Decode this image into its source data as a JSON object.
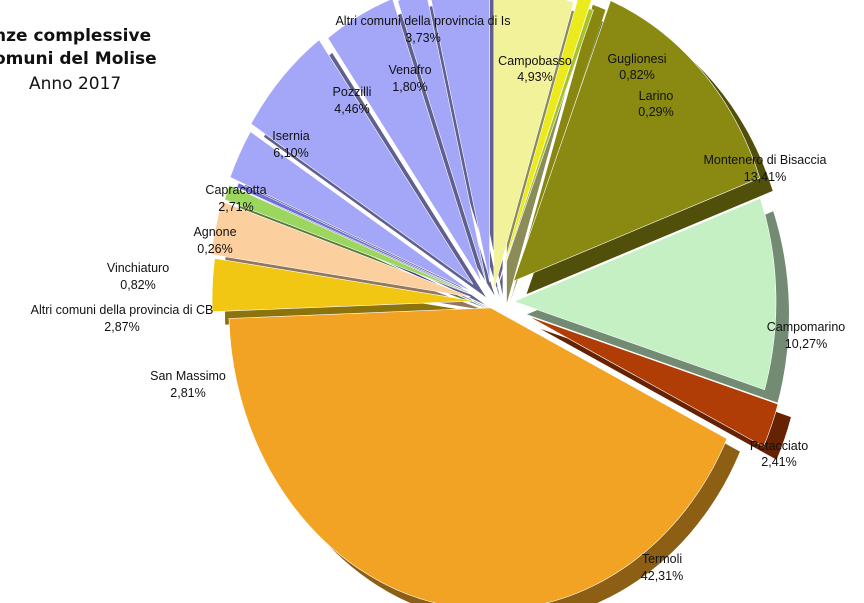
{
  "chart_data": {
    "type": "pie",
    "title_lines": [
      "nze complessive",
      "omuni del Molise",
      "Anno 2017"
    ],
    "slices": [
      {
        "name": "Campobasso",
        "value": 4.93,
        "label": "4,93%",
        "color": "#f2f29a"
      },
      {
        "name": "Guglionesi",
        "value": 0.82,
        "label": "0,82%",
        "color": "#eaea1c"
      },
      {
        "name": "Larino",
        "value": 0.29,
        "label": "0,29%",
        "color": "#a9c22a"
      },
      {
        "name": "Montenero di Bisaccia",
        "value": 13.41,
        "label": "13,41%",
        "color": "#8a8a12"
      },
      {
        "name": "Campomarino",
        "value": 10.27,
        "label": "10,27%",
        "color": "#c4f0c4"
      },
      {
        "name": "Petacciato",
        "value": 2.41,
        "label": "2,41%",
        "color": "#b03c06"
      },
      {
        "name": "Termoli",
        "value": 42.31,
        "label": "42,31%",
        "color": "#f2a323"
      },
      {
        "name": "San Massimo",
        "value": 2.81,
        "label": "2,81%",
        "color": "#f2c713"
      },
      {
        "name": "Altri comuni della provincia di CB",
        "value": 2.87,
        "label": "2,87%",
        "color": "#fbcf9e"
      },
      {
        "name": "Vinchiaturo",
        "value": 0.82,
        "label": "0,82%",
        "color": "#9bd65e"
      },
      {
        "name": "Agnone",
        "value": 0.26,
        "label": "0,26%",
        "color": "#6f70d8"
      },
      {
        "name": "Capracotta",
        "value": 2.71,
        "label": "2,71%",
        "color": "#a4a6f8"
      },
      {
        "name": "Isernia",
        "value": 6.1,
        "label": "6,10%",
        "color": "#a4a6f8"
      },
      {
        "name": "Pozzilli",
        "value": 4.46,
        "label": "4,46%",
        "color": "#a4a6f8"
      },
      {
        "name": "Venafro",
        "value": 1.8,
        "label": "1,80%",
        "color": "#a4a6f8"
      },
      {
        "name": "Altri comuni della provincia di Is",
        "value": 3.73,
        "label": "3,73%",
        "color": "#a4a6f8"
      }
    ]
  }
}
